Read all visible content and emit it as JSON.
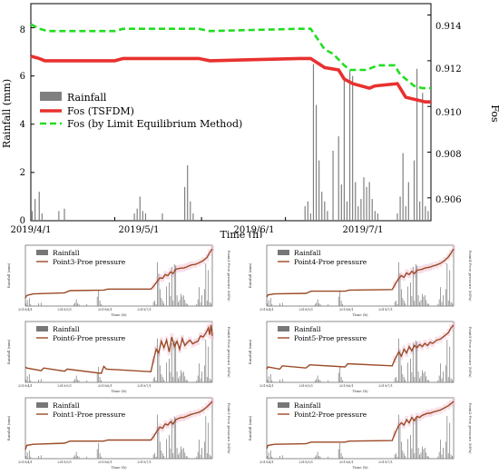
{
  "chart_data": [
    {
      "type": "combo",
      "xlabel": "Time (h)",
      "ylabel_left": "Rainfall (mm)",
      "ylabel_right": "Fos",
      "ylim_left": [
        0,
        9
      ],
      "ylim_right": [
        0.905,
        0.9145
      ],
      "yticks_left": [
        "0",
        "2",
        "4",
        "6",
        "8"
      ],
      "yticks_right": [
        "0.906",
        "0.908",
        "0.910",
        "0.912",
        "0.914"
      ],
      "xticks": [
        "2019/4/1",
        "2019/5/1",
        "2019/6/1",
        "2019/7/1"
      ],
      "legend_position": "center-left",
      "legend": [
        "Rainfall",
        "Fos (TSFDM)",
        "Fos (by Limit Equilibrium Method)"
      ],
      "colors": {
        "rainfall": "#808080",
        "tsfdm": "#e8312f",
        "lem": "#22dd22"
      },
      "series": [
        {
          "name": "Fos (TSFDM)",
          "axis": "right",
          "x": [
            0,
            3,
            5,
            30,
            33,
            60,
            64,
            96,
            100,
            105,
            110,
            112,
            115,
            121,
            123,
            131,
            134,
            141,
            143
          ],
          "y": [
            0.9122,
            0.9121,
            0.912,
            0.912,
            0.9121,
            0.9121,
            0.912,
            0.9121,
            0.9121,
            0.9117,
            0.9116,
            0.9112,
            0.911,
            0.9108,
            0.9109,
            0.911,
            0.9104,
            0.9102,
            0.9102
          ]
        },
        {
          "name": "Fos (by Limit Equilibrium Method)",
          "axis": "right",
          "x": [
            0,
            3,
            6,
            30,
            33,
            60,
            64,
            96,
            100,
            105,
            108,
            112,
            114,
            120,
            124,
            130,
            132,
            137,
            140,
            143
          ],
          "y": [
            0.9136,
            0.9134,
            0.9133,
            0.9133,
            0.9134,
            0.9134,
            0.9133,
            0.9134,
            0.9134,
            0.9125,
            0.9123,
            0.9118,
            0.9116,
            0.9116,
            0.9118,
            0.9118,
            0.9114,
            0.9109,
            0.9108,
            0.9108
          ]
        },
        {
          "name": "Rainfall",
          "axis": "left",
          "x": [
            0.5,
            1.5,
            3,
            4,
            10,
            12,
            37,
            38,
            39,
            40,
            41,
            47,
            55,
            56,
            57,
            58,
            98,
            99,
            100,
            101,
            102,
            103,
            104,
            105,
            106,
            108,
            110,
            111,
            112,
            113,
            114,
            115,
            116,
            117,
            118,
            119,
            120,
            121,
            122,
            123,
            124,
            131,
            132,
            133,
            134,
            135,
            137,
            138,
            139,
            140,
            141,
            142
          ],
          "y": [
            0.4,
            0.9,
            1.2,
            0.3,
            0.4,
            0.5,
            0.3,
            0.5,
            1.0,
            0.4,
            0.3,
            0.3,
            1.4,
            2.3,
            0.8,
            0.3,
            0.6,
            0.8,
            0.3,
            6.5,
            4.8,
            2.5,
            1.2,
            0.8,
            0.4,
            2.9,
            3.5,
            1.5,
            5.8,
            0.8,
            6.2,
            6.0,
            1.6,
            0.6,
            0.9,
            1.8,
            1.4,
            1.6,
            0.9,
            0.4,
            0.3,
            0.3,
            1.0,
            2.8,
            0.6,
            1.6,
            2.5,
            6.3,
            0.8,
            5.3,
            0.6,
            0.4
          ]
        }
      ]
    },
    {
      "type": "combo",
      "legend": [
        "Rainfall",
        "Point3-Proe pressure"
      ],
      "ylabel_left": "Rainfall (mm)",
      "ylabel_right": "Point3-Proe pressure (MPa)",
      "xlabel": "Time (h)",
      "xticks": [
        "2019/4/1",
        "2019/5/1",
        "2019/6/1",
        "2019/7/1"
      ],
      "series": [
        {
          "name": "Point3-Proe pressure",
          "x": [
            0,
            1,
            6,
            30,
            34,
            60,
            63,
            96,
            98,
            101,
            103,
            105,
            107,
            109,
            111,
            113,
            115,
            117,
            119,
            121,
            123,
            125,
            127,
            130,
            133,
            136,
            139,
            141,
            143
          ],
          "y": [
            0.08,
            0.13,
            0.16,
            0.18,
            0.22,
            0.23,
            0.25,
            0.25,
            0.3,
            0.4,
            0.46,
            0.45,
            0.52,
            0.5,
            0.57,
            0.54,
            0.62,
            0.63,
            0.64,
            0.64,
            0.66,
            0.68,
            0.7,
            0.71,
            0.74,
            0.78,
            0.84,
            0.93,
            1.0
          ]
        }
      ]
    },
    {
      "type": "combo",
      "legend": [
        "Rainfall",
        "Point4-Proe pressure"
      ],
      "ylabel_left": "Rainfall (mm)",
      "ylabel_right": "Point4-Proe pressure (MPa)",
      "xlabel": "Time (h)",
      "xticks": [
        "2019/4/1",
        "2019/5/1",
        "2019/6/1",
        "2019/7/1"
      ],
      "series": [
        {
          "name": "Point4-Proe pressure",
          "x": [
            0,
            1,
            6,
            30,
            34,
            60,
            63,
            96,
            98,
            101,
            103,
            105,
            107,
            109,
            111,
            113,
            115,
            117,
            119,
            121,
            123,
            125,
            127,
            130,
            133,
            136,
            139,
            141,
            143
          ],
          "y": [
            0.1,
            0.14,
            0.16,
            0.17,
            0.21,
            0.21,
            0.23,
            0.24,
            0.33,
            0.45,
            0.5,
            0.47,
            0.55,
            0.52,
            0.58,
            0.54,
            0.6,
            0.61,
            0.62,
            0.64,
            0.65,
            0.66,
            0.68,
            0.7,
            0.73,
            0.78,
            0.85,
            0.92,
            1.0
          ]
        }
      ]
    },
    {
      "type": "combo",
      "legend": [
        "Rainfall",
        "Point6-Proe pressure"
      ],
      "ylabel_left": "Rainfall (mm)",
      "ylabel_right": "Point6-Proe pressure (MPa)",
      "xlabel": "Time (h)",
      "xticks": [
        "2019/4/1",
        "2019/5/1",
        "2019/6/1",
        "2019/7/1"
      ],
      "series": [
        {
          "name": "Point6-Proe pressure",
          "x": [
            0,
            1,
            12,
            14,
            30,
            32,
            58,
            60,
            62,
            96,
            98,
            100,
            102,
            104,
            106,
            108,
            110,
            112,
            114,
            116,
            118,
            120,
            122,
            124,
            126,
            128,
            130,
            132,
            134,
            136,
            138,
            140,
            141,
            142,
            143
          ],
          "y": [
            0.22,
            0.2,
            0.15,
            0.2,
            0.14,
            0.18,
            0.1,
            0.23,
            0.18,
            0.13,
            0.35,
            0.55,
            0.48,
            0.7,
            0.58,
            0.72,
            0.5,
            0.78,
            0.6,
            0.7,
            0.55,
            0.75,
            0.62,
            0.68,
            0.72,
            0.65,
            0.68,
            0.7,
            0.8,
            0.78,
            0.85,
            0.95,
            0.82,
            1.0,
            0.8
          ]
        }
      ]
    },
    {
      "type": "combo",
      "legend": [
        "Rainfall",
        "Point5-Proe pressure"
      ],
      "ylabel_left": "Rainfall (mm)",
      "ylabel_right": "Point5-Proe pressure (MPa)",
      "xlabel": "Time (h)",
      "xticks": [
        "2019/4/1",
        "2019/5/1",
        "2019/6/1",
        "2019/7/1"
      ],
      "series": [
        {
          "name": "Point5-Proe pressure",
          "x": [
            0,
            1,
            10,
            12,
            30,
            33,
            60,
            62,
            96,
            98,
            101,
            103,
            105,
            107,
            109,
            111,
            113,
            115,
            117,
            119,
            121,
            123,
            125,
            127,
            130,
            133,
            136,
            139,
            141,
            143
          ],
          "y": [
            0.18,
            0.22,
            0.18,
            0.24,
            0.2,
            0.26,
            0.22,
            0.28,
            0.24,
            0.36,
            0.5,
            0.42,
            0.55,
            0.48,
            0.6,
            0.52,
            0.62,
            0.58,
            0.64,
            0.6,
            0.66,
            0.62,
            0.68,
            0.66,
            0.72,
            0.74,
            0.8,
            0.86,
            0.95,
            1.0
          ]
        }
      ]
    },
    {
      "type": "combo",
      "legend": [
        "Rainfall",
        "Point1-Proe pressure"
      ],
      "ylabel_left": "Rainfall (mm)",
      "ylabel_right": "Point1-Proe pressure (MPa)",
      "xlabel": "Time (h)",
      "xticks": [
        "2019/4/1",
        "2019/5/1",
        "2019/6/1",
        "2019/7/1"
      ],
      "series": [
        {
          "name": "Point1-Proe pressure",
          "x": [
            0,
            1,
            6,
            30,
            34,
            60,
            63,
            96,
            98,
            101,
            103,
            105,
            107,
            109,
            111,
            113,
            115,
            117,
            119,
            121,
            123,
            125,
            127,
            130,
            133,
            136,
            139,
            141,
            143
          ],
          "y": [
            0.1,
            0.18,
            0.2,
            0.22,
            0.26,
            0.26,
            0.28,
            0.28,
            0.34,
            0.46,
            0.52,
            0.5,
            0.58,
            0.56,
            0.62,
            0.58,
            0.66,
            0.68,
            0.7,
            0.7,
            0.72,
            0.74,
            0.76,
            0.78,
            0.8,
            0.84,
            0.9,
            0.95,
            1.0
          ]
        }
      ]
    },
    {
      "type": "combo",
      "legend": [
        "Rainfall",
        "Point2-Proe pressure"
      ],
      "ylabel_left": "Rainfall (mm)",
      "ylabel_right": "Point2-Proe pressure (MPa)",
      "xlabel": "Time (h)",
      "xticks": [
        "2019/4/1",
        "2019/5/1",
        "2019/6/1",
        "2019/7/1"
      ],
      "series": [
        {
          "name": "Point2-Proe pressure",
          "x": [
            0,
            1,
            6,
            30,
            34,
            60,
            63,
            96,
            98,
            101,
            103,
            105,
            107,
            109,
            111,
            113,
            115,
            117,
            119,
            121,
            123,
            125,
            127,
            130,
            133,
            136,
            139,
            141,
            143
          ],
          "y": [
            0.12,
            0.18,
            0.2,
            0.21,
            0.24,
            0.24,
            0.26,
            0.27,
            0.4,
            0.55,
            0.6,
            0.56,
            0.66,
            0.6,
            0.7,
            0.64,
            0.72,
            0.7,
            0.74,
            0.76,
            0.78,
            0.78,
            0.8,
            0.82,
            0.84,
            0.88,
            0.92,
            0.96,
            1.0
          ]
        }
      ]
    }
  ]
}
